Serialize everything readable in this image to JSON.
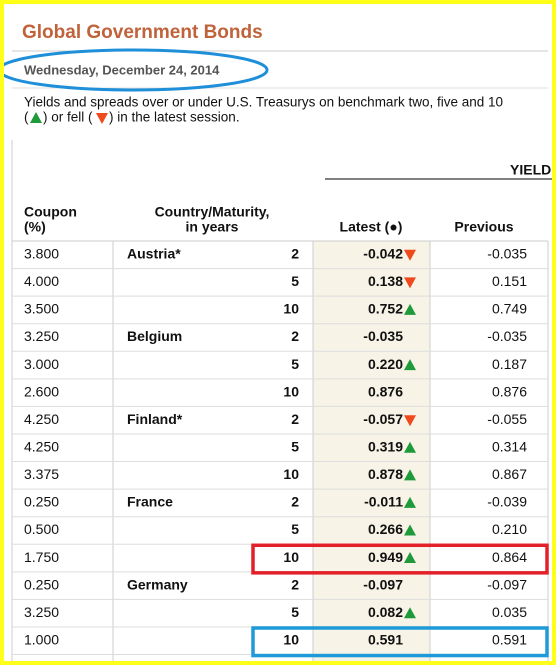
{
  "header": {
    "title": "Global Government Bonds",
    "date": "Wednesday, December 24, 2014",
    "description": {
      "line1": "Yields and spreads over or under U.S. Treasurys on benchmark two, five and 10",
      "line2": [
        "(",
        ") or fell (",
        ") in the latest session."
      ]
    }
  },
  "table": {
    "group_header": "YIELD",
    "columns": {
      "coupon": [
        "Coupon",
        "(%)"
      ],
      "country": [
        "Country/Maturity,",
        "in years"
      ],
      "latest": "Latest (●)",
      "previous": "Previous"
    },
    "rows": [
      {
        "coupon": "3.800",
        "country": "Austria*",
        "maturity": "2",
        "latest": "-0.042",
        "change": "down",
        "previous": "-0.035"
      },
      {
        "coupon": "4.000",
        "maturity": "5",
        "latest": "0.138",
        "change": "down",
        "previous": "0.151"
      },
      {
        "coupon": "3.500",
        "maturity": "10",
        "latest": "0.752",
        "change": "up",
        "previous": "0.749"
      },
      {
        "coupon": "3.250",
        "country": "Belgium",
        "maturity": "2",
        "latest": "-0.035",
        "change": "none",
        "previous": "-0.035"
      },
      {
        "coupon": "3.000",
        "maturity": "5",
        "latest": "0.220",
        "change": "up",
        "previous": "0.187"
      },
      {
        "coupon": "2.600",
        "maturity": "10",
        "latest": "0.876",
        "change": "none",
        "previous": "0.876"
      },
      {
        "coupon": "4.250",
        "country": "Finland*",
        "maturity": "2",
        "latest": "-0.057",
        "change": "down",
        "previous": "-0.055"
      },
      {
        "coupon": "4.250",
        "maturity": "5",
        "latest": "0.319",
        "change": "up",
        "previous": "0.314"
      },
      {
        "coupon": "3.375",
        "maturity": "10",
        "latest": "0.878",
        "change": "up",
        "previous": "0.867"
      },
      {
        "coupon": "0.250",
        "country": "France",
        "maturity": "2",
        "latest": "-0.011",
        "change": "up",
        "previous": "-0.039"
      },
      {
        "coupon": "0.500",
        "maturity": "5",
        "latest": "0.266",
        "change": "up",
        "previous": "0.210"
      },
      {
        "coupon": "1.750",
        "maturity": "10",
        "latest": "0.949",
        "change": "up",
        "previous": "0.864"
      },
      {
        "coupon": "0.250",
        "country": "Germany",
        "maturity": "2",
        "latest": "-0.097",
        "change": "none",
        "previous": "-0.097"
      },
      {
        "coupon": "3.250",
        "maturity": "5",
        "latest": "0.082",
        "change": "up",
        "previous": "0.035"
      },
      {
        "coupon": "1.000",
        "maturity": "10",
        "latest": "0.591",
        "change": "none",
        "previous": "0.591"
      }
    ]
  }
}
